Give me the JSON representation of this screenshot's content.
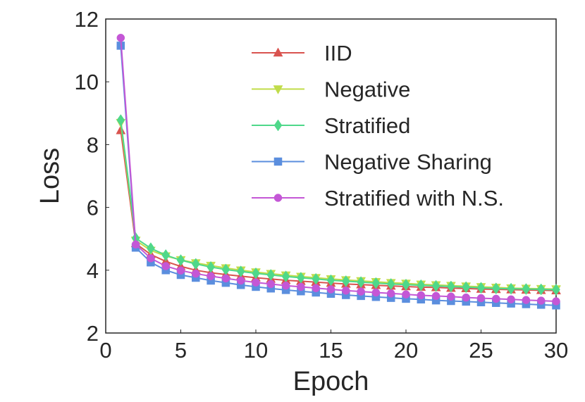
{
  "chart_data": {
    "type": "line",
    "title": "",
    "xlabel": "Epoch",
    "ylabel": "Loss",
    "xlim": [
      0,
      30
    ],
    "ylim": [
      2,
      12
    ],
    "xticks": [
      0,
      5,
      10,
      15,
      20,
      25,
      30
    ],
    "yticks": [
      2,
      4,
      6,
      8,
      10,
      12
    ],
    "x_tick_labels": [
      "0",
      "5",
      "10",
      "15",
      "20",
      "25",
      "30"
    ],
    "y_tick_labels": [
      "2",
      "4",
      "6",
      "8",
      "10",
      "12"
    ],
    "grid": false,
    "legend_position": "top-right",
    "x": [
      1,
      2,
      3,
      4,
      5,
      6,
      7,
      8,
      9,
      10,
      11,
      12,
      13,
      14,
      15,
      16,
      17,
      18,
      19,
      20,
      21,
      22,
      23,
      24,
      25,
      26,
      27,
      28,
      29,
      30
    ],
    "series": [
      {
        "name": "IID",
        "color": "#d9534f",
        "marker": "triangle-up",
        "values": [
          8.45,
          4.85,
          4.5,
          4.28,
          4.12,
          4.0,
          3.92,
          3.86,
          3.81,
          3.76,
          3.72,
          3.68,
          3.65,
          3.62,
          3.59,
          3.56,
          3.54,
          3.52,
          3.5,
          3.48,
          3.46,
          3.45,
          3.43,
          3.42,
          3.4,
          3.39,
          3.38,
          3.37,
          3.36,
          3.35
        ]
      },
      {
        "name": "Negative",
        "color": "#c0dc4a",
        "marker": "triangle-down",
        "values": [
          8.7,
          4.95,
          4.63,
          4.45,
          4.33,
          4.23,
          4.15,
          4.07,
          4.0,
          3.94,
          3.89,
          3.84,
          3.8,
          3.76,
          3.72,
          3.69,
          3.66,
          3.63,
          3.6,
          3.58,
          3.55,
          3.53,
          3.51,
          3.49,
          3.47,
          3.45,
          3.43,
          3.42,
          3.41,
          3.4
        ]
      },
      {
        "name": "Stratified",
        "color": "#4fd88a",
        "marker": "diamond",
        "values": [
          8.78,
          5.02,
          4.7,
          4.48,
          4.32,
          4.2,
          4.1,
          4.02,
          3.96,
          3.9,
          3.85,
          3.8,
          3.76,
          3.72,
          3.68,
          3.65,
          3.62,
          3.59,
          3.56,
          3.54,
          3.52,
          3.5,
          3.48,
          3.46,
          3.44,
          3.42,
          3.41,
          3.4,
          3.39,
          3.38
        ]
      },
      {
        "name": "Negative Sharing",
        "color": "#5b8ede",
        "marker": "square",
        "values": [
          11.15,
          4.72,
          4.25,
          4.0,
          3.85,
          3.76,
          3.67,
          3.6,
          3.53,
          3.47,
          3.42,
          3.37,
          3.33,
          3.29,
          3.25,
          3.21,
          3.18,
          3.15,
          3.12,
          3.09,
          3.07,
          3.04,
          3.02,
          3.0,
          2.98,
          2.96,
          2.94,
          2.92,
          2.9,
          2.88
        ]
      },
      {
        "name": "Stratified with N.S.",
        "color": "#c457d6",
        "marker": "circle",
        "values": [
          11.4,
          4.82,
          4.38,
          4.13,
          3.99,
          3.89,
          3.81,
          3.74,
          3.67,
          3.61,
          3.56,
          3.51,
          3.47,
          3.43,
          3.39,
          3.35,
          3.32,
          3.29,
          3.26,
          3.23,
          3.2,
          3.18,
          3.16,
          3.13,
          3.11,
          3.09,
          3.07,
          3.05,
          3.03,
          3.01
        ]
      }
    ]
  }
}
